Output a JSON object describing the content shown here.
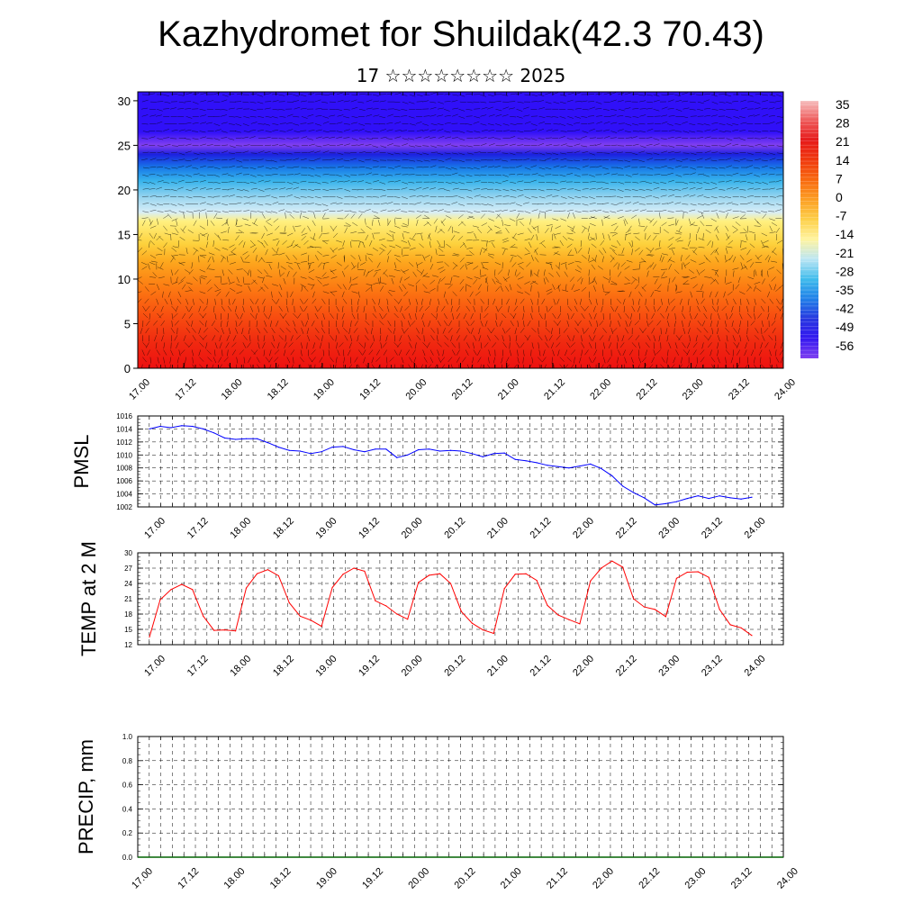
{
  "header": {
    "title": "Kazhydromet for Shuildak(42.3 70.43)",
    "subtitle": "17 ☆☆☆☆☆☆☆☆ 2025"
  },
  "time_labels": [
    "17.00",
    "17.12",
    "18.00",
    "18.12",
    "19.00",
    "19.12",
    "20.00",
    "20.12",
    "21.00",
    "21.12",
    "22.00",
    "22.12",
    "23.00",
    "23.12",
    "24.00"
  ],
  "chart_data": [
    {
      "type": "heatmap",
      "name": "vertical-cross-section",
      "ylim": [
        0,
        31
      ],
      "y_ticks": [
        0,
        5,
        10,
        15,
        20,
        25,
        30
      ],
      "x_tick_labels": [
        "17.00",
        "17.12",
        "18.00",
        "18.12",
        "19.00",
        "19.12",
        "20.00",
        "20.12",
        "21.00",
        "21.12",
        "22.00",
        "22.12",
        "23.00",
        "23.12",
        "24.00"
      ],
      "colorbar_labels": [
        "35",
        "28",
        "21",
        "14",
        "7",
        "0",
        "-7",
        "-14",
        "-21",
        "-28",
        "-35",
        "-42",
        "-49",
        "-56"
      ],
      "colorbar_colors": [
        "#f6bebe",
        "#ee5a5a",
        "#e61a1a",
        "#f03a0e",
        "#f86a10",
        "#fca025",
        "#fdd04a",
        "#fff4a0",
        "#bce6f4",
        "#40bcec",
        "#2080e8",
        "#2838e0",
        "#3418f0",
        "#8040f0"
      ],
      "temperature_profile": {
        "heights": [
          0,
          3,
          6,
          9,
          12,
          14,
          16.5,
          17.5,
          19,
          21,
          22.5,
          24,
          25,
          26.5,
          28,
          31
        ],
        "values": [
          30,
          27,
          22,
          14,
          8,
          2,
          -4,
          -12,
          -20,
          -28,
          -38,
          -50,
          -60,
          -56,
          -54,
          -54
        ]
      },
      "wind_vectors": "many small black arrows"
    },
    {
      "type": "line",
      "name": "PMSL",
      "ylabel": "PMSL",
      "ylim": [
        1002,
        1016
      ],
      "y_ticks": [
        1002,
        1004,
        1006,
        1008,
        1010,
        1012,
        1014,
        1016
      ],
      "color": "#0000ff",
      "x_tick_labels": [
        "17.00",
        "17.12",
        "18.00",
        "18.12",
        "19.00",
        "19.12",
        "20.00",
        "20.12",
        "21.00",
        "21.12",
        "22.00",
        "22.12",
        "23.00",
        "23.12",
        "24.00"
      ],
      "x": [
        0,
        3,
        6,
        9,
        12,
        15,
        18,
        21,
        24,
        27,
        30,
        33,
        36,
        39,
        42,
        45,
        48,
        51,
        54,
        57,
        60,
        63,
        66,
        69,
        72,
        75,
        78,
        81,
        84,
        87,
        90,
        93,
        96,
        99,
        102,
        105,
        108,
        111,
        114,
        117,
        120,
        123,
        126,
        129,
        132,
        135,
        138,
        141,
        144,
        147,
        150,
        153,
        156,
        159,
        162,
        165,
        168
      ],
      "values": [
        1014.0,
        1014.4,
        1014.2,
        1014.5,
        1014.4,
        1014.0,
        1013.4,
        1012.6,
        1012.4,
        1012.5,
        1012.5,
        1011.9,
        1011.2,
        1010.7,
        1010.6,
        1010.2,
        1010.5,
        1011.2,
        1011.3,
        1010.8,
        1010.5,
        1010.9,
        1010.9,
        1009.6,
        1010.0,
        1010.8,
        1010.9,
        1010.6,
        1010.7,
        1010.6,
        1010.2,
        1009.7,
        1010.2,
        1010.3,
        1009.3,
        1009.1,
        1008.8,
        1008.4,
        1008.2,
        1008.0,
        1008.3,
        1008.6,
        1007.9,
        1006.8,
        1005.2,
        1004.2,
        1003.4,
        1002.3,
        1002.5,
        1002.8,
        1003.3,
        1003.7,
        1003.3,
        1003.7,
        1003.4,
        1003.2,
        1003.5
      ]
    },
    {
      "type": "line",
      "name": "TEMP at 2 M",
      "ylabel": "TEMP at 2 M",
      "ylim": [
        12,
        30
      ],
      "y_ticks": [
        12,
        15,
        18,
        21,
        24,
        27,
        30
      ],
      "color": "#ff0000",
      "x_tick_labels": [
        "17.00",
        "17.12",
        "18.00",
        "18.12",
        "19.00",
        "19.12",
        "20.00",
        "20.12",
        "21.00",
        "21.12",
        "22.00",
        "22.12",
        "23.00",
        "23.12",
        "24.00"
      ],
      "x": [
        0,
        3,
        6,
        9,
        12,
        15,
        18,
        21,
        24,
        27,
        30,
        33,
        36,
        39,
        42,
        45,
        48,
        51,
        54,
        57,
        60,
        63,
        66,
        69,
        72,
        75,
        78,
        81,
        84,
        87,
        90,
        93,
        96,
        99,
        102,
        105,
        108,
        111,
        114,
        117,
        120,
        123,
        126,
        129,
        132,
        135,
        138,
        141,
        144,
        147,
        150,
        153,
        156,
        159,
        162,
        165,
        168
      ],
      "values": [
        13.5,
        20.8,
        22.8,
        23.8,
        22.8,
        17.6,
        14.8,
        14.9,
        14.7,
        23.1,
        25.9,
        26.7,
        25.5,
        20.2,
        17.6,
        16.8,
        15.6,
        23.2,
        25.8,
        27.0,
        26.4,
        20.6,
        19.6,
        18.0,
        17.0,
        24.2,
        25.6,
        25.9,
        24.0,
        18.5,
        16.2,
        14.9,
        14.2,
        23.0,
        25.8,
        25.9,
        24.6,
        19.7,
        17.8,
        16.9,
        16.1,
        24.5,
        27.0,
        28.4,
        27.2,
        21.0,
        19.4,
        18.9,
        17.5,
        25.0,
        26.2,
        26.3,
        25.2,
        18.9,
        15.9,
        15.3,
        13.8
      ]
    },
    {
      "type": "line",
      "name": "PRECIP, mm",
      "ylabel": "PRECIP, mm",
      "ylim": [
        0.0,
        1.0
      ],
      "y_tick_labels": [
        "0.0",
        "0.2",
        "0.4",
        "0.6",
        "0.8",
        "1.0"
      ],
      "color": "#006400",
      "x_tick_labels": [
        "17.00",
        "17.12",
        "18.00",
        "18.12",
        "19.00",
        "19.12",
        "20.00",
        "20.12",
        "21.00",
        "21.12",
        "22.00",
        "22.12",
        "23.00",
        "23.12",
        "24.00"
      ],
      "values": [
        0,
        0,
        0,
        0,
        0,
        0,
        0,
        0,
        0,
        0,
        0,
        0,
        0,
        0,
        0,
        0,
        0,
        0,
        0,
        0,
        0,
        0,
        0,
        0,
        0,
        0,
        0,
        0,
        0,
        0,
        0,
        0,
        0,
        0,
        0,
        0,
        0,
        0,
        0,
        0,
        0,
        0,
        0,
        0,
        0,
        0,
        0,
        0,
        0,
        0,
        0,
        0,
        0,
        0,
        0,
        0,
        0
      ]
    }
  ]
}
